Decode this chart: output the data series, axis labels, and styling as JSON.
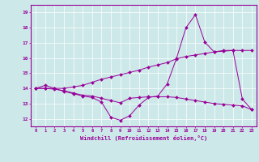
{
  "xlabel": "Windchill (Refroidissement éolien,°C)",
  "bg_color": "#cce8e8",
  "line_color": "#990099",
  "x_ticks": [
    0,
    1,
    2,
    3,
    4,
    5,
    6,
    7,
    8,
    9,
    10,
    11,
    12,
    13,
    14,
    15,
    16,
    17,
    18,
    19,
    20,
    21,
    22,
    23
  ],
  "y_ticks": [
    12,
    13,
    14,
    15,
    16,
    17,
    18,
    19
  ],
  "xlim": [
    -0.5,
    23.5
  ],
  "ylim": [
    11.5,
    19.5
  ],
  "series1_x": [
    0,
    1,
    2,
    3,
    4,
    5,
    6,
    7,
    8,
    9,
    10,
    11,
    12,
    13,
    14,
    15,
    16,
    17,
    18,
    19,
    20,
    21,
    22,
    23
  ],
  "series1_y": [
    14.0,
    14.2,
    14.0,
    13.8,
    13.65,
    13.5,
    13.4,
    13.1,
    12.1,
    11.9,
    12.2,
    12.9,
    13.4,
    13.5,
    14.3,
    16.0,
    18.0,
    18.85,
    17.05,
    16.4,
    16.5,
    16.5,
    13.3,
    12.6
  ],
  "series2_x": [
    0,
    1,
    2,
    3,
    4,
    5,
    6,
    7,
    8,
    9,
    10,
    11,
    12,
    13,
    14,
    15,
    16,
    17,
    18,
    19,
    20,
    21,
    22,
    23
  ],
  "series2_y": [
    14.0,
    14.0,
    13.95,
    13.85,
    13.7,
    13.55,
    13.5,
    13.35,
    13.2,
    13.05,
    13.35,
    13.4,
    13.45,
    13.45,
    13.45,
    13.4,
    13.3,
    13.2,
    13.1,
    13.0,
    12.95,
    12.9,
    12.85,
    12.6
  ],
  "series3_x": [
    0,
    1,
    2,
    3,
    4,
    5,
    6,
    7,
    8,
    9,
    10,
    11,
    12,
    13,
    14,
    15,
    16,
    17,
    18,
    19,
    20,
    21,
    22,
    23
  ],
  "series3_y": [
    14.0,
    14.0,
    14.0,
    14.0,
    14.1,
    14.2,
    14.4,
    14.6,
    14.75,
    14.9,
    15.05,
    15.2,
    15.4,
    15.55,
    15.7,
    15.95,
    16.1,
    16.2,
    16.3,
    16.4,
    16.45,
    16.5,
    16.5,
    16.5
  ]
}
